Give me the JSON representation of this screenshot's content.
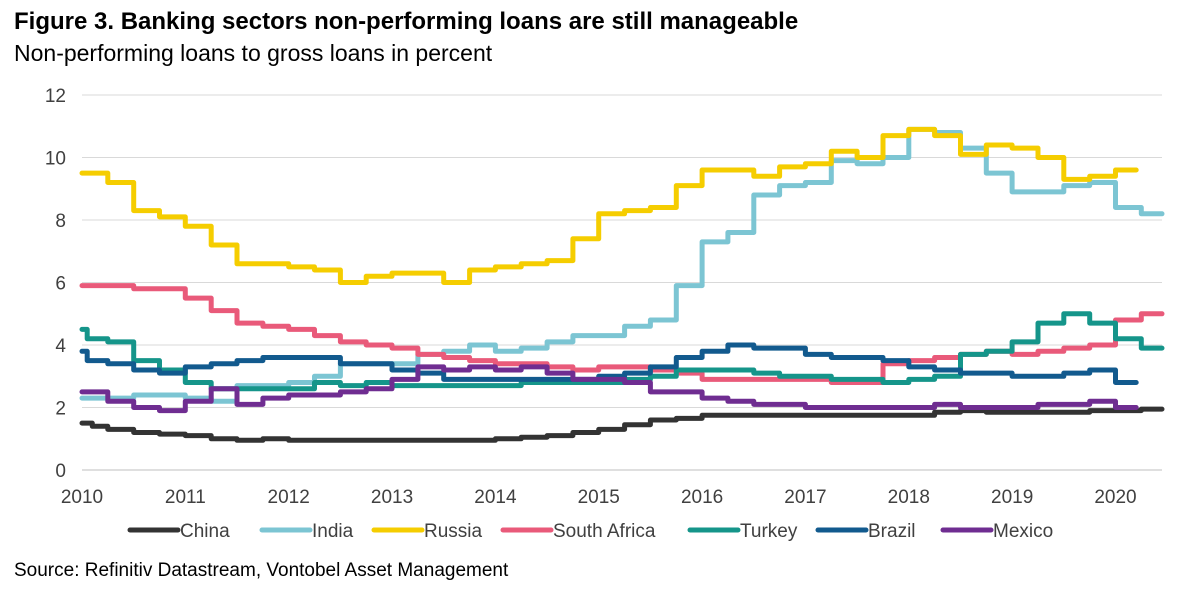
{
  "title": "Figure 3. Banking sectors non-performing loans are still manageable",
  "subtitle": "Non-performing loans to gross loans in percent",
  "source": "Source: Refinitiv Datastream, Vontobel Asset Management",
  "chart_data": {
    "type": "line",
    "title": "Figure 3. Banking sectors non-performing loans are still manageable",
    "subtitle": "Non-performing loans to gross loans in percent",
    "xlabel": "",
    "ylabel": "",
    "xlim": [
      2010,
      2020.45
    ],
    "ylim": [
      0,
      12
    ],
    "yticks": [
      0,
      2,
      4,
      6,
      8,
      10,
      12
    ],
    "xticks": [
      2010,
      2011,
      2012,
      2013,
      2014,
      2015,
      2016,
      2017,
      2018,
      2019,
      2020
    ],
    "grid": true,
    "legend_position": "bottom",
    "series": [
      {
        "name": "China",
        "color": "#333333",
        "points": [
          [
            2010,
            1.5
          ],
          [
            2010.1,
            1.4
          ],
          [
            2010.25,
            1.3
          ],
          [
            2010.5,
            1.2
          ],
          [
            2010.75,
            1.15
          ],
          [
            2011,
            1.1
          ],
          [
            2011.25,
            1.0
          ],
          [
            2011.5,
            0.95
          ],
          [
            2011.75,
            1.0
          ],
          [
            2012,
            0.95
          ],
          [
            2012.5,
            0.95
          ],
          [
            2013,
            0.95
          ],
          [
            2013.5,
            0.95
          ],
          [
            2013.75,
            0.95
          ],
          [
            2014,
            1.0
          ],
          [
            2014.25,
            1.05
          ],
          [
            2014.5,
            1.1
          ],
          [
            2014.75,
            1.2
          ],
          [
            2015,
            1.3
          ],
          [
            2015.25,
            1.45
          ],
          [
            2015.5,
            1.6
          ],
          [
            2015.75,
            1.65
          ],
          [
            2016,
            1.75
          ],
          [
            2016.5,
            1.75
          ],
          [
            2017,
            1.75
          ],
          [
            2017.5,
            1.75
          ],
          [
            2018,
            1.75
          ],
          [
            2018.25,
            1.85
          ],
          [
            2018.5,
            1.9
          ],
          [
            2018.75,
            1.85
          ],
          [
            2019,
            1.85
          ],
          [
            2019.5,
            1.85
          ],
          [
            2019.75,
            1.9
          ],
          [
            2020,
            1.9
          ],
          [
            2020.25,
            1.95
          ],
          [
            2020.45,
            1.95
          ]
        ]
      },
      {
        "name": "India",
        "color": "#7cc5d3",
        "points": [
          [
            2010,
            2.3
          ],
          [
            2010.25,
            2.3
          ],
          [
            2010.5,
            2.4
          ],
          [
            2010.75,
            2.4
          ],
          [
            2011,
            2.3
          ],
          [
            2011.25,
            2.2
          ],
          [
            2011.5,
            2.7
          ],
          [
            2011.75,
            2.7
          ],
          [
            2012,
            2.8
          ],
          [
            2012.25,
            3.0
          ],
          [
            2012.5,
            3.4
          ],
          [
            2012.75,
            3.4
          ],
          [
            2013,
            3.4
          ],
          [
            2013.25,
            3.7
          ],
          [
            2013.5,
            3.8
          ],
          [
            2013.75,
            4.0
          ],
          [
            2014,
            3.8
          ],
          [
            2014.25,
            3.9
          ],
          [
            2014.5,
            4.1
          ],
          [
            2014.75,
            4.3
          ],
          [
            2015,
            4.3
          ],
          [
            2015.25,
            4.6
          ],
          [
            2015.5,
            4.8
          ],
          [
            2015.75,
            5.9
          ],
          [
            2016,
            7.3
          ],
          [
            2016.25,
            7.6
          ],
          [
            2016.5,
            8.8
          ],
          [
            2016.75,
            9.1
          ],
          [
            2017,
            9.2
          ],
          [
            2017.25,
            9.9
          ],
          [
            2017.5,
            9.8
          ],
          [
            2017.75,
            10.0
          ],
          [
            2018,
            10.9
          ],
          [
            2018.25,
            10.8
          ],
          [
            2018.5,
            10.3
          ],
          [
            2018.75,
            9.5
          ],
          [
            2019,
            8.9
          ],
          [
            2019.25,
            8.9
          ],
          [
            2019.5,
            9.1
          ],
          [
            2019.75,
            9.2
          ],
          [
            2020,
            8.4
          ],
          [
            2020.25,
            8.2
          ],
          [
            2020.45,
            8.2
          ]
        ]
      },
      {
        "name": "Russia",
        "color": "#f5cd00",
        "points": [
          [
            2010,
            9.5
          ],
          [
            2010.25,
            9.2
          ],
          [
            2010.5,
            8.3
          ],
          [
            2010.75,
            8.1
          ],
          [
            2011,
            7.8
          ],
          [
            2011.25,
            7.2
          ],
          [
            2011.5,
            6.6
          ],
          [
            2011.75,
            6.6
          ],
          [
            2012,
            6.5
          ],
          [
            2012.25,
            6.4
          ],
          [
            2012.5,
            6.0
          ],
          [
            2012.75,
            6.2
          ],
          [
            2013,
            6.3
          ],
          [
            2013.25,
            6.3
          ],
          [
            2013.5,
            6.0
          ],
          [
            2013.75,
            6.4
          ],
          [
            2014,
            6.5
          ],
          [
            2014.25,
            6.6
          ],
          [
            2014.5,
            6.7
          ],
          [
            2014.75,
            7.4
          ],
          [
            2015,
            8.2
          ],
          [
            2015.25,
            8.3
          ],
          [
            2015.5,
            8.4
          ],
          [
            2015.75,
            9.1
          ],
          [
            2016,
            9.6
          ],
          [
            2016.25,
            9.6
          ],
          [
            2016.5,
            9.4
          ],
          [
            2016.75,
            9.7
          ],
          [
            2017,
            9.8
          ],
          [
            2017.25,
            10.2
          ],
          [
            2017.5,
            10.0
          ],
          [
            2017.75,
            10.7
          ],
          [
            2018,
            10.9
          ],
          [
            2018.25,
            10.7
          ],
          [
            2018.5,
            10.1
          ],
          [
            2018.75,
            10.4
          ],
          [
            2019,
            10.3
          ],
          [
            2019.25,
            10.0
          ],
          [
            2019.5,
            9.3
          ],
          [
            2019.75,
            9.4
          ],
          [
            2020,
            9.6
          ],
          [
            2020.2,
            9.6
          ]
        ]
      },
      {
        "name": "South Africa",
        "color": "#e95a7a",
        "points": [
          [
            2010,
            5.9
          ],
          [
            2010.25,
            5.9
          ],
          [
            2010.5,
            5.8
          ],
          [
            2010.75,
            5.8
          ],
          [
            2011,
            5.5
          ],
          [
            2011.25,
            5.1
          ],
          [
            2011.5,
            4.7
          ],
          [
            2011.75,
            4.6
          ],
          [
            2012,
            4.5
          ],
          [
            2012.25,
            4.3
          ],
          [
            2012.5,
            4.1
          ],
          [
            2012.75,
            4.0
          ],
          [
            2013,
            3.9
          ],
          [
            2013.25,
            3.7
          ],
          [
            2013.5,
            3.6
          ],
          [
            2013.75,
            3.5
          ],
          [
            2014,
            3.4
          ],
          [
            2014.25,
            3.4
          ],
          [
            2014.5,
            3.3
          ],
          [
            2014.75,
            3.2
          ],
          [
            2015,
            3.3
          ],
          [
            2015.25,
            3.3
          ],
          [
            2015.5,
            3.2
          ],
          [
            2015.75,
            3.1
          ],
          [
            2016,
            2.9
          ],
          [
            2016.25,
            2.9
          ],
          [
            2016.5,
            2.9
          ],
          [
            2016.75,
            2.9
          ],
          [
            2017,
            2.9
          ],
          [
            2017.25,
            2.8
          ],
          [
            2017.5,
            2.8
          ],
          [
            2017.75,
            3.4
          ],
          [
            2018,
            3.5
          ],
          [
            2018.25,
            3.6
          ],
          [
            2018.5,
            3.7
          ],
          [
            2018.75,
            3.8
          ],
          [
            2019,
            3.7
          ],
          [
            2019.25,
            3.8
          ],
          [
            2019.5,
            3.9
          ],
          [
            2019.75,
            4.0
          ],
          [
            2020,
            4.8
          ],
          [
            2020.25,
            5.0
          ],
          [
            2020.45,
            5.0
          ]
        ]
      },
      {
        "name": "Turkey",
        "color": "#15958a",
        "points": [
          [
            2010,
            4.5
          ],
          [
            2010.05,
            4.2
          ],
          [
            2010.25,
            4.1
          ],
          [
            2010.5,
            3.5
          ],
          [
            2010.75,
            3.2
          ],
          [
            2011,
            2.8
          ],
          [
            2011.25,
            2.6
          ],
          [
            2011.5,
            2.6
          ],
          [
            2011.75,
            2.6
          ],
          [
            2012,
            2.6
          ],
          [
            2012.25,
            2.8
          ],
          [
            2012.5,
            2.7
          ],
          [
            2012.75,
            2.8
          ],
          [
            2013,
            2.7
          ],
          [
            2013.25,
            2.7
          ],
          [
            2013.5,
            2.7
          ],
          [
            2013.75,
            2.7
          ],
          [
            2014,
            2.7
          ],
          [
            2014.25,
            2.8
          ],
          [
            2014.5,
            2.8
          ],
          [
            2014.75,
            2.8
          ],
          [
            2015,
            2.8
          ],
          [
            2015.25,
            2.9
          ],
          [
            2015.5,
            3.0
          ],
          [
            2015.75,
            3.2
          ],
          [
            2016,
            3.2
          ],
          [
            2016.25,
            3.2
          ],
          [
            2016.5,
            3.1
          ],
          [
            2016.75,
            3.0
          ],
          [
            2017,
            3.0
          ],
          [
            2017.25,
            2.9
          ],
          [
            2017.5,
            2.9
          ],
          [
            2017.75,
            2.8
          ],
          [
            2018,
            2.9
          ],
          [
            2018.25,
            3.0
          ],
          [
            2018.5,
            3.7
          ],
          [
            2018.75,
            3.8
          ],
          [
            2019,
            4.1
          ],
          [
            2019.25,
            4.7
          ],
          [
            2019.5,
            5.0
          ],
          [
            2019.75,
            4.7
          ],
          [
            2020,
            4.2
          ],
          [
            2020.25,
            3.9
          ],
          [
            2020.45,
            3.9
          ]
        ]
      },
      {
        "name": "Brazil",
        "color": "#125a8e",
        "points": [
          [
            2010,
            3.8
          ],
          [
            2010.05,
            3.5
          ],
          [
            2010.25,
            3.4
          ],
          [
            2010.5,
            3.2
          ],
          [
            2010.75,
            3.1
          ],
          [
            2011,
            3.3
          ],
          [
            2011.25,
            3.4
          ],
          [
            2011.5,
            3.5
          ],
          [
            2011.75,
            3.6
          ],
          [
            2012,
            3.6
          ],
          [
            2012.25,
            3.6
          ],
          [
            2012.5,
            3.4
          ],
          [
            2012.75,
            3.4
          ],
          [
            2013,
            3.2
          ],
          [
            2013.25,
            3.1
          ],
          [
            2013.5,
            2.9
          ],
          [
            2013.75,
            2.9
          ],
          [
            2014,
            2.9
          ],
          [
            2014.25,
            2.9
          ],
          [
            2014.5,
            2.9
          ],
          [
            2014.75,
            2.9
          ],
          [
            2015,
            3.0
          ],
          [
            2015.25,
            3.1
          ],
          [
            2015.5,
            3.3
          ],
          [
            2015.75,
            3.6
          ],
          [
            2016,
            3.8
          ],
          [
            2016.25,
            4.0
          ],
          [
            2016.5,
            3.9
          ],
          [
            2016.75,
            3.9
          ],
          [
            2017,
            3.7
          ],
          [
            2017.25,
            3.6
          ],
          [
            2017.5,
            3.6
          ],
          [
            2017.75,
            3.5
          ],
          [
            2018,
            3.3
          ],
          [
            2018.25,
            3.2
          ],
          [
            2018.5,
            3.1
          ],
          [
            2018.75,
            3.1
          ],
          [
            2019,
            3.0
          ],
          [
            2019.25,
            3.0
          ],
          [
            2019.5,
            3.1
          ],
          [
            2019.75,
            3.2
          ],
          [
            2020,
            2.8
          ],
          [
            2020.2,
            2.8
          ]
        ]
      },
      {
        "name": "Mexico",
        "color": "#6f2d91",
        "points": [
          [
            2010,
            2.5
          ],
          [
            2010.25,
            2.2
          ],
          [
            2010.5,
            2.0
          ],
          [
            2010.75,
            1.9
          ],
          [
            2011,
            2.2
          ],
          [
            2011.25,
            2.6
          ],
          [
            2011.5,
            2.1
          ],
          [
            2011.75,
            2.3
          ],
          [
            2012,
            2.4
          ],
          [
            2012.25,
            2.4
          ],
          [
            2012.5,
            2.5
          ],
          [
            2012.75,
            2.6
          ],
          [
            2013,
            2.9
          ],
          [
            2013.25,
            3.3
          ],
          [
            2013.5,
            3.2
          ],
          [
            2013.75,
            3.3
          ],
          [
            2014,
            3.2
          ],
          [
            2014.25,
            3.3
          ],
          [
            2014.5,
            3.1
          ],
          [
            2014.75,
            2.9
          ],
          [
            2015,
            2.9
          ],
          [
            2015.25,
            2.8
          ],
          [
            2015.5,
            2.5
          ],
          [
            2015.75,
            2.5
          ],
          [
            2016,
            2.3
          ],
          [
            2016.25,
            2.2
          ],
          [
            2016.5,
            2.1
          ],
          [
            2016.75,
            2.1
          ],
          [
            2017,
            2.0
          ],
          [
            2017.25,
            2.0
          ],
          [
            2017.5,
            2.0
          ],
          [
            2017.75,
            2.0
          ],
          [
            2018,
            2.0
          ],
          [
            2018.25,
            2.1
          ],
          [
            2018.5,
            2.0
          ],
          [
            2018.75,
            2.0
          ],
          [
            2019,
            2.0
          ],
          [
            2019.25,
            2.1
          ],
          [
            2019.5,
            2.1
          ],
          [
            2019.75,
            2.2
          ],
          [
            2020,
            2.0
          ],
          [
            2020.2,
            2.0
          ]
        ]
      }
    ]
  }
}
